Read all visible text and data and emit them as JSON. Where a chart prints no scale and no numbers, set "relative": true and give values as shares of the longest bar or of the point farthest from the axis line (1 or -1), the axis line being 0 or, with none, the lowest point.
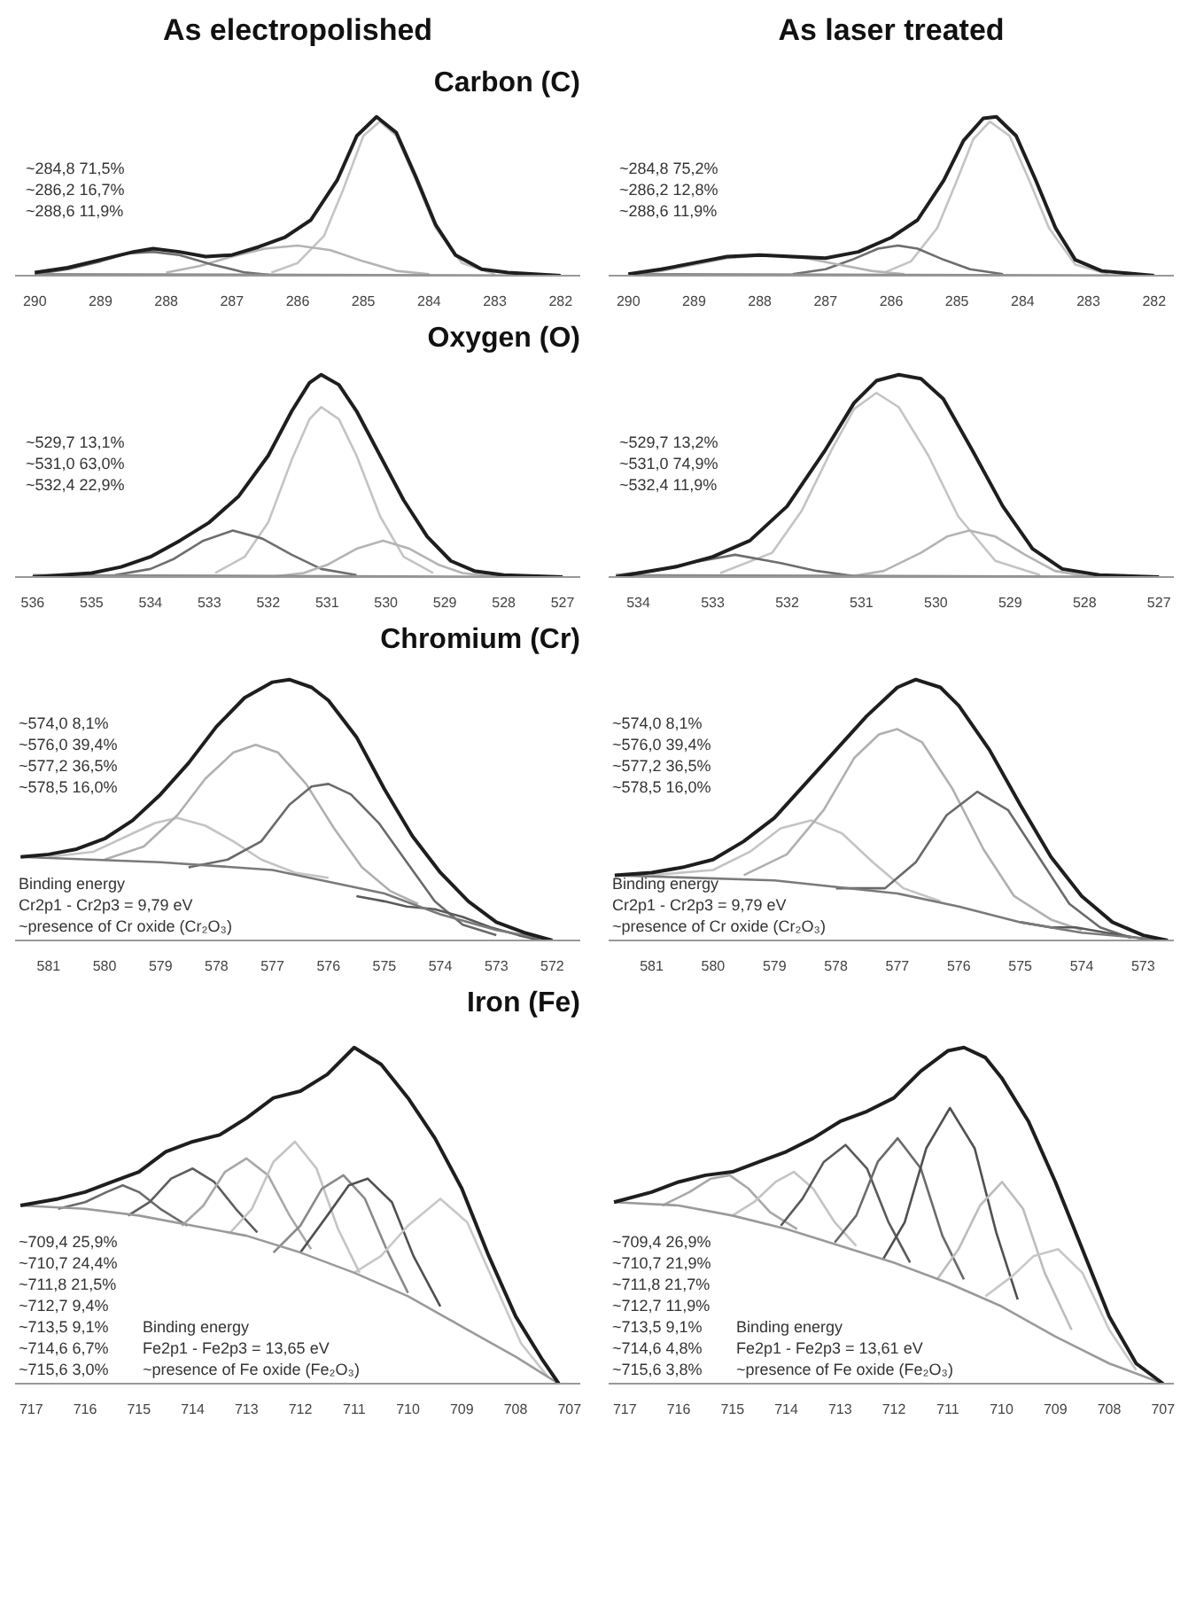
{
  "chart_data": [
    {
      "type": "line",
      "relative": true,
      "title": "As electropolished",
      "subtitle": "Carbon (C)",
      "tick_labels": "x",
      "xlim": [
        290.3,
        281.7
      ],
      "xticks": [
        290,
        289,
        288,
        287,
        286,
        285,
        284,
        283,
        282
      ],
      "annotations": [
        "~284,8    71,5%",
        "~286,2    16,7%",
        "~288,6    11,9%"
      ],
      "series": [
        {
          "color": "#c4c4c4",
          "x": [
            286.4,
            286,
            285.6,
            285.3,
            285,
            284.75,
            284.5,
            284.2,
            283.9,
            283.5,
            283
          ],
          "values": [
            0.02,
            0.08,
            0.25,
            0.55,
            0.88,
            0.97,
            0.88,
            0.6,
            0.3,
            0.08,
            0.01
          ]
        },
        {
          "color": "#b4b4b4",
          "x": [
            288,
            287.5,
            287,
            286.5,
            286,
            285.5,
            285,
            284.5,
            284
          ],
          "values": [
            0.02,
            0.06,
            0.12,
            0.17,
            0.19,
            0.16,
            0.09,
            0.03,
            0.01
          ]
        },
        {
          "color": "#6e6e6e",
          "x": [
            290,
            289.5,
            289,
            288.6,
            288.2,
            287.8,
            287.3,
            286.8,
            286.3
          ],
          "values": [
            0.01,
            0.04,
            0.09,
            0.14,
            0.15,
            0.13,
            0.07,
            0.02,
            0.0
          ]
        },
        {
          "color": "#8c8c8c",
          "x": [
            290,
            282
          ],
          "values": [
            0.01,
            0.0
          ]
        },
        {
          "color": "#1e1e1e",
          "x": [
            290,
            289.5,
            289,
            288.5,
            288.2,
            287.8,
            287.4,
            287,
            286.6,
            286.2,
            285.8,
            285.4,
            285.1,
            284.8,
            284.5,
            284.2,
            283.9,
            283.6,
            283.2,
            282.8,
            282
          ],
          "values": [
            0.02,
            0.05,
            0.1,
            0.15,
            0.17,
            0.15,
            0.12,
            0.13,
            0.18,
            0.24,
            0.35,
            0.6,
            0.88,
            1.0,
            0.9,
            0.62,
            0.32,
            0.13,
            0.04,
            0.02,
            0.0
          ]
        }
      ]
    },
    {
      "type": "line",
      "relative": true,
      "title": "As laser treated",
      "tick_labels": "x",
      "xlim": [
        290.3,
        281.7
      ],
      "xticks": [
        290,
        289,
        288,
        287,
        286,
        285,
        284,
        283,
        282
      ],
      "annotations": [
        "~284,8    75,2%",
        "~286,2    12,8%",
        "~288,6    11,9%"
      ],
      "series": [
        {
          "color": "#c4c4c4",
          "x": [
            286.1,
            285.7,
            285.3,
            285,
            284.75,
            284.5,
            284.2,
            283.9,
            283.6,
            283.2,
            282.7
          ],
          "values": [
            0.02,
            0.09,
            0.3,
            0.6,
            0.86,
            0.97,
            0.88,
            0.6,
            0.3,
            0.07,
            0.01
          ]
        },
        {
          "color": "#6e6e6e",
          "x": [
            287.5,
            287,
            286.6,
            286.2,
            285.9,
            285.6,
            285.2,
            284.8,
            284.3
          ],
          "values": [
            0.01,
            0.04,
            0.1,
            0.17,
            0.19,
            0.17,
            0.1,
            0.04,
            0.01
          ]
        },
        {
          "color": "#b4b4b4",
          "x": [
            290,
            289.5,
            289,
            288.5,
            287.9,
            287.3,
            286.8,
            286.3,
            285.8
          ],
          "values": [
            0.01,
            0.03,
            0.07,
            0.11,
            0.13,
            0.11,
            0.07,
            0.03,
            0.01
          ]
        },
        {
          "color": "#8c8c8c",
          "x": [
            290,
            282
          ],
          "values": [
            0.01,
            0.0
          ]
        },
        {
          "color": "#1e1e1e",
          "x": [
            290,
            289.5,
            289,
            288.5,
            288,
            287.5,
            287,
            286.5,
            286,
            285.6,
            285.2,
            284.9,
            284.6,
            284.4,
            284.1,
            283.8,
            283.5,
            283.2,
            282.8,
            282
          ],
          "values": [
            0.01,
            0.04,
            0.08,
            0.12,
            0.13,
            0.12,
            0.11,
            0.15,
            0.24,
            0.35,
            0.6,
            0.85,
            0.99,
            1.0,
            0.88,
            0.6,
            0.3,
            0.1,
            0.03,
            0.0
          ]
        }
      ]
    },
    {
      "type": "line",
      "relative": true,
      "subtitle": "Oxygen (O)",
      "tick_labels": "x",
      "xlim": [
        536.3,
        526.7
      ],
      "xticks": [
        536,
        535,
        534,
        533,
        532,
        531,
        530,
        529,
        528,
        527
      ],
      "annotations": [
        "~529,7    13,1%",
        "~531,0    63,0%",
        "~532,4    22,9%"
      ],
      "series": [
        {
          "color": "#c4c4c4",
          "x": [
            532.9,
            532.4,
            532,
            531.6,
            531.3,
            531.1,
            530.8,
            530.5,
            530.1,
            529.7,
            529.2
          ],
          "values": [
            0.02,
            0.1,
            0.27,
            0.58,
            0.78,
            0.84,
            0.78,
            0.6,
            0.3,
            0.1,
            0.02
          ]
        },
        {
          "color": "#6e6e6e",
          "x": [
            534.6,
            534,
            533.6,
            533.1,
            532.6,
            532.1,
            531.6,
            531.1,
            530.5
          ],
          "values": [
            0.01,
            0.04,
            0.09,
            0.18,
            0.23,
            0.19,
            0.11,
            0.04,
            0.01
          ]
        },
        {
          "color": "#b4b4b4",
          "x": [
            532,
            531.4,
            531,
            530.5,
            530.05,
            529.6,
            529.1,
            528.7,
            528.1
          ],
          "values": [
            0.0,
            0.02,
            0.06,
            0.14,
            0.18,
            0.14,
            0.06,
            0.02,
            0.0
          ]
        },
        {
          "color": "#8c8c8c",
          "x": [
            536,
            527
          ],
          "values": [
            0.01,
            0.0
          ]
        },
        {
          "color": "#1e1e1e",
          "x": [
            536,
            535,
            534.5,
            534,
            533.5,
            533,
            532.5,
            532,
            531.6,
            531.3,
            531.1,
            530.8,
            530.5,
            530.1,
            529.7,
            529.3,
            528.9,
            528.5,
            528,
            527
          ],
          "values": [
            0.0,
            0.02,
            0.05,
            0.1,
            0.18,
            0.27,
            0.4,
            0.6,
            0.82,
            0.96,
            1.0,
            0.95,
            0.82,
            0.6,
            0.38,
            0.2,
            0.08,
            0.03,
            0.01,
            0.0
          ]
        }
      ]
    },
    {
      "type": "line",
      "relative": true,
      "tick_labels": "x",
      "xlim": [
        534.4,
        526.8
      ],
      "xticks": [
        534,
        533,
        532,
        531,
        530,
        529,
        528,
        527
      ],
      "annotations": [
        "~529,7    13,2%",
        "~531,0    74,9%",
        "~532,4    11,9%"
      ],
      "series": [
        {
          "color": "#c4c4c4",
          "x": [
            532.9,
            532.2,
            531.8,
            531.4,
            531.1,
            530.8,
            530.5,
            530.1,
            529.7,
            529.2,
            528.6
          ],
          "values": [
            0.02,
            0.12,
            0.33,
            0.63,
            0.83,
            0.91,
            0.84,
            0.6,
            0.3,
            0.08,
            0.01
          ]
        },
        {
          "color": "#6e6e6e",
          "x": [
            534.3,
            533.8,
            533.3,
            532.7,
            532.1,
            531.6,
            531
          ],
          "values": [
            0.01,
            0.03,
            0.07,
            0.11,
            0.07,
            0.03,
            0.0
          ]
        },
        {
          "color": "#b4b4b4",
          "x": [
            531.2,
            530.7,
            530.2,
            529.85,
            529.55,
            529.2,
            528.8,
            528.4,
            527.9
          ],
          "values": [
            0.0,
            0.03,
            0.12,
            0.2,
            0.23,
            0.2,
            0.11,
            0.03,
            0.0
          ]
        },
        {
          "color": "#8c8c8c",
          "x": [
            534.3,
            527
          ],
          "values": [
            0.01,
            0.0
          ]
        },
        {
          "color": "#1e1e1e",
          "x": [
            534.3,
            534,
            533.5,
            533,
            532.5,
            532,
            531.5,
            531.1,
            530.8,
            530.5,
            530.2,
            529.9,
            529.5,
            529.1,
            528.7,
            528.3,
            527.8,
            527
          ],
          "values": [
            0.0,
            0.02,
            0.05,
            0.1,
            0.18,
            0.35,
            0.62,
            0.86,
            0.97,
            1.0,
            0.98,
            0.88,
            0.62,
            0.35,
            0.14,
            0.04,
            0.01,
            0.0
          ]
        }
      ]
    },
    {
      "type": "line",
      "relative": true,
      "subtitle": "Chromium (Cr)",
      "tick_labels": "x",
      "xlim": [
        581.6,
        571.5
      ],
      "xticks": [
        581,
        580,
        579,
        578,
        577,
        576,
        575,
        574,
        573,
        572
      ],
      "annotations": [
        "~574,0    8,1%",
        "~576,0    39,4%",
        "~577,2    36,5%",
        "~578,5    16,0%",
        "Binding energy",
        "Cr2p1 - Cr2p3 = 9,79 eV",
        "~presence of Cr oxide (Cr₂O₃)"
      ],
      "series": [
        {
          "color": "#c4c4c4",
          "x": [
            581,
            580.2,
            579.6,
            579.1,
            578.7,
            578.2,
            577.7,
            577.2,
            576.6,
            576
          ],
          "values": [
            0.32,
            0.34,
            0.4,
            0.45,
            0.47,
            0.44,
            0.38,
            0.31,
            0.26,
            0.24
          ]
        },
        {
          "color": "#b0b0b0",
          "x": [
            580,
            579.3,
            578.7,
            578.2,
            577.7,
            577.3,
            576.9,
            576.4,
            575.9,
            575.4,
            574.9,
            574.4
          ],
          "values": [
            0.31,
            0.36,
            0.48,
            0.62,
            0.72,
            0.75,
            0.72,
            0.6,
            0.43,
            0.28,
            0.19,
            0.14
          ]
        },
        {
          "color": "#6a6a6a",
          "x": [
            578.5,
            577.8,
            577.2,
            576.7,
            576.3,
            576,
            575.6,
            575.1,
            574.6,
            574.1,
            573.6,
            573
          ],
          "values": [
            0.28,
            0.31,
            0.38,
            0.52,
            0.59,
            0.6,
            0.56,
            0.45,
            0.3,
            0.15,
            0.06,
            0.02
          ]
        },
        {
          "color": "#5a5a5a",
          "x": [
            575.5,
            575,
            574.6,
            574.1,
            573.6,
            573.1,
            572.6,
            572.2
          ],
          "values": [
            0.17,
            0.15,
            0.13,
            0.12,
            0.09,
            0.05,
            0.02,
            0.0
          ]
        },
        {
          "color": "#7a7a7a",
          "x": [
            581.5,
            579,
            577,
            575,
            574,
            573,
            572
          ],
          "values": [
            0.32,
            0.3,
            0.27,
            0.18,
            0.1,
            0.04,
            0.0
          ]
        },
        {
          "color": "#1e1e1e",
          "x": [
            581.5,
            581,
            580.5,
            580,
            579.5,
            579,
            578.5,
            578,
            577.5,
            577,
            576.7,
            576.3,
            576,
            575.5,
            575,
            574.5,
            574,
            573.5,
            573,
            572.5,
            572
          ],
          "values": [
            0.32,
            0.33,
            0.35,
            0.39,
            0.46,
            0.56,
            0.68,
            0.82,
            0.93,
            0.99,
            1.0,
            0.97,
            0.92,
            0.78,
            0.58,
            0.4,
            0.26,
            0.15,
            0.07,
            0.03,
            0.0
          ]
        }
      ]
    },
    {
      "type": "line",
      "relative": true,
      "tick_labels": "x",
      "xlim": [
        581.7,
        572.5
      ],
      "xticks": [
        581,
        580,
        579,
        578,
        577,
        576,
        575,
        574,
        573
      ],
      "annotations": [
        "~574,0    8,1%",
        "~576,0    39,4%",
        "~577,2    36,5%",
        "~578,5    16,0%",
        "Binding energy",
        "Cr2p1 - Cr2p3 = 9,79 eV",
        "~presence of Cr oxide (Cr₂O₃)"
      ],
      "series": [
        {
          "color": "#c4c4c4",
          "x": [
            581,
            580,
            579.4,
            578.9,
            578.4,
            577.9,
            577.4,
            576.9,
            576.3
          ],
          "values": [
            0.25,
            0.27,
            0.34,
            0.43,
            0.46,
            0.41,
            0.3,
            0.2,
            0.15
          ]
        },
        {
          "color": "#b0b0b0",
          "x": [
            579.5,
            578.8,
            578.2,
            577.7,
            577.3,
            577,
            576.6,
            576.1,
            575.6,
            575.1,
            574.5,
            574
          ],
          "values": [
            0.25,
            0.33,
            0.5,
            0.7,
            0.79,
            0.81,
            0.76,
            0.58,
            0.35,
            0.17,
            0.08,
            0.04
          ]
        },
        {
          "color": "#6a6a6a",
          "x": [
            578,
            577.2,
            576.7,
            576.2,
            575.7,
            575.2,
            574.7,
            574.2,
            573.7,
            573.2
          ],
          "values": [
            0.2,
            0.2,
            0.3,
            0.48,
            0.57,
            0.5,
            0.32,
            0.14,
            0.05,
            0.01
          ]
        },
        {
          "color": "#5a5a5a",
          "x": [
            575,
            574.5,
            574.1,
            573.6,
            573.1,
            572.8
          ],
          "values": [
            0.07,
            0.05,
            0.05,
            0.03,
            0.01,
            0.0
          ]
        },
        {
          "color": "#7a7a7a",
          "x": [
            581.6,
            579,
            577,
            576,
            575,
            574,
            572.6
          ],
          "values": [
            0.25,
            0.23,
            0.18,
            0.13,
            0.07,
            0.03,
            0.0
          ]
        },
        {
          "color": "#1e1e1e",
          "x": [
            581.6,
            581,
            580.5,
            580,
            579.5,
            579,
            578.5,
            578,
            577.5,
            577,
            576.7,
            576.3,
            576,
            575.5,
            575,
            574.5,
            574,
            573.5,
            573,
            572.6
          ],
          "values": [
            0.25,
            0.26,
            0.28,
            0.31,
            0.38,
            0.47,
            0.6,
            0.73,
            0.86,
            0.97,
            1.0,
            0.97,
            0.9,
            0.73,
            0.52,
            0.32,
            0.17,
            0.07,
            0.02,
            0.0
          ]
        }
      ]
    },
    {
      "type": "line",
      "relative": true,
      "subtitle": "Iron (Fe)",
      "tick_labels": "x",
      "xlim": [
        717.3,
        706.8
      ],
      "xticks": [
        717,
        716,
        715,
        714,
        713,
        712,
        711,
        710,
        709,
        708,
        707
      ],
      "annotations": [
        "~709,4    25,9%",
        "~710,7    24,4%",
        "~711,8    21,5%",
        "~712,7    9,4%",
        "~713,5    9,1%",
        "~714,6    6,7%",
        "~715,6    3,0%",
        "Binding energy",
        "Fe2p1 - Fe2p3 = 13,65 eV",
        "~presence of Fe oxide (Fe₂O₃)"
      ],
      "series": [
        {
          "color": "#6a6a6a",
          "x": [
            716.5,
            716,
            715.6,
            715.3,
            715,
            714.6,
            714.1
          ],
          "values": [
            0.52,
            0.54,
            0.57,
            0.59,
            0.57,
            0.52,
            0.47
          ]
        },
        {
          "color": "#5e5e5e",
          "x": [
            715.2,
            714.8,
            714.4,
            714,
            713.6,
            713.2,
            712.8
          ],
          "values": [
            0.5,
            0.54,
            0.61,
            0.64,
            0.6,
            0.52,
            0.45
          ]
        },
        {
          "color": "#a8a8a8",
          "x": [
            714.2,
            713.8,
            713.4,
            713,
            712.6,
            712.2,
            711.8
          ],
          "values": [
            0.47,
            0.53,
            0.63,
            0.67,
            0.62,
            0.5,
            0.4
          ]
        },
        {
          "color": "#c4c4c4",
          "x": [
            713.3,
            712.9,
            712.5,
            712.1,
            711.7,
            711.3,
            710.9
          ],
          "values": [
            0.45,
            0.52,
            0.66,
            0.72,
            0.64,
            0.46,
            0.33
          ]
        },
        {
          "color": "#8a8a8a",
          "x": [
            712.5,
            712,
            711.6,
            711.2,
            710.8,
            710.4,
            710
          ],
          "values": [
            0.39,
            0.47,
            0.58,
            0.62,
            0.55,
            0.4,
            0.27
          ]
        },
        {
          "color": "#505050",
          "x": [
            712,
            711.5,
            711.1,
            710.75,
            710.3,
            709.9,
            709.4
          ],
          "values": [
            0.39,
            0.5,
            0.59,
            0.61,
            0.54,
            0.38,
            0.23
          ]
        },
        {
          "color": "#c8c8c8",
          "x": [
            711,
            710.5,
            710,
            709.4,
            708.9,
            708.4,
            707.9,
            707.4
          ],
          "values": [
            0.33,
            0.38,
            0.47,
            0.55,
            0.48,
            0.3,
            0.12,
            0.02
          ]
        },
        {
          "color": "#9a9a9a",
          "x": [
            717.2,
            716,
            715,
            714,
            713,
            712,
            711,
            710,
            709,
            708,
            707.2
          ],
          "values": [
            0.53,
            0.52,
            0.5,
            0.47,
            0.44,
            0.39,
            0.33,
            0.26,
            0.17,
            0.08,
            0.0
          ]
        },
        {
          "color": "#1e1e1e",
          "x": [
            717.2,
            716.5,
            716,
            715.5,
            715,
            714.5,
            714,
            713.5,
            713,
            712.5,
            712,
            711.5,
            711,
            710.5,
            710,
            709.5,
            709,
            708.5,
            708,
            707.5,
            707.2
          ],
          "values": [
            0.53,
            0.55,
            0.57,
            0.6,
            0.63,
            0.69,
            0.72,
            0.74,
            0.79,
            0.85,
            0.87,
            0.92,
            1.0,
            0.95,
            0.85,
            0.73,
            0.58,
            0.38,
            0.2,
            0.07,
            0.0
          ]
        }
      ]
    },
    {
      "type": "line",
      "relative": true,
      "tick_labels": "x",
      "xlim": [
        717.3,
        706.8
      ],
      "xticks": [
        717,
        716,
        715,
        714,
        713,
        712,
        711,
        710,
        709,
        708,
        707
      ],
      "annotations": [
        "~709,4    26,9%",
        "~710,7    21,9%",
        "~711,8    21,7%",
        "~712,7    11,9%",
        "~713,5    9,1%",
        "~714,6    4,8%",
        "~715,6    3,8%",
        "Binding energy",
        "Fe2p1 - Fe2p3 = 13,61 eV",
        "~presence of Fe oxide (Fe₂O₃)"
      ],
      "series": [
        {
          "color": "#a8a8a8",
          "x": [
            716.3,
            715.8,
            715.4,
            715.05,
            714.7,
            714.3,
            713.8
          ],
          "values": [
            0.53,
            0.57,
            0.61,
            0.62,
            0.58,
            0.51,
            0.46
          ]
        },
        {
          "color": "#c4c4c4",
          "x": [
            715,
            714.6,
            714.2,
            713.86,
            713.5,
            713.1,
            712.7
          ],
          "values": [
            0.5,
            0.54,
            0.6,
            0.63,
            0.58,
            0.48,
            0.41
          ]
        },
        {
          "color": "#5a5a5a",
          "x": [
            714.1,
            713.7,
            713.3,
            712.9,
            712.5,
            712.1,
            711.7
          ],
          "values": [
            0.47,
            0.55,
            0.66,
            0.71,
            0.64,
            0.48,
            0.36
          ]
        },
        {
          "color": "#6a6a6a",
          "x": [
            713.1,
            712.7,
            712.3,
            711.93,
            711.5,
            711.1,
            710.7
          ],
          "values": [
            0.42,
            0.5,
            0.66,
            0.73,
            0.64,
            0.44,
            0.31
          ]
        },
        {
          "color": "#505050",
          "x": [
            712.2,
            711.8,
            711.4,
            710.96,
            710.5,
            710.1,
            709.7
          ],
          "values": [
            0.37,
            0.48,
            0.7,
            0.82,
            0.7,
            0.45,
            0.25
          ]
        },
        {
          "color": "#bcbcbc",
          "x": [
            711.2,
            710.8,
            710.4,
            709.99,
            709.6,
            709.2,
            708.7
          ],
          "values": [
            0.31,
            0.4,
            0.53,
            0.6,
            0.52,
            0.33,
            0.16
          ]
        },
        {
          "color": "#c8c8c8",
          "x": [
            710.3,
            709.8,
            709.4,
            708.95,
            708.5,
            708,
            707.5
          ],
          "values": [
            0.26,
            0.32,
            0.38,
            0.4,
            0.33,
            0.16,
            0.04
          ]
        },
        {
          "color": "#9a9a9a",
          "x": [
            717.2,
            716,
            715,
            714,
            713,
            712,
            711,
            710,
            709,
            708,
            707
          ],
          "values": [
            0.54,
            0.53,
            0.5,
            0.46,
            0.41,
            0.36,
            0.3,
            0.23,
            0.14,
            0.06,
            0.0
          ]
        },
        {
          "color": "#1e1e1e",
          "x": [
            717.2,
            716.5,
            716,
            715.5,
            715,
            714.5,
            714,
            713.5,
            713,
            712.5,
            712,
            711.5,
            711,
            710.7,
            710.3,
            710,
            709.5,
            709,
            708.5,
            708,
            707.5,
            707
          ],
          "values": [
            0.54,
            0.57,
            0.6,
            0.62,
            0.63,
            0.66,
            0.69,
            0.73,
            0.78,
            0.81,
            0.85,
            0.93,
            0.99,
            1.0,
            0.97,
            0.91,
            0.78,
            0.6,
            0.4,
            0.2,
            0.06,
            0.0
          ]
        }
      ]
    }
  ]
}
